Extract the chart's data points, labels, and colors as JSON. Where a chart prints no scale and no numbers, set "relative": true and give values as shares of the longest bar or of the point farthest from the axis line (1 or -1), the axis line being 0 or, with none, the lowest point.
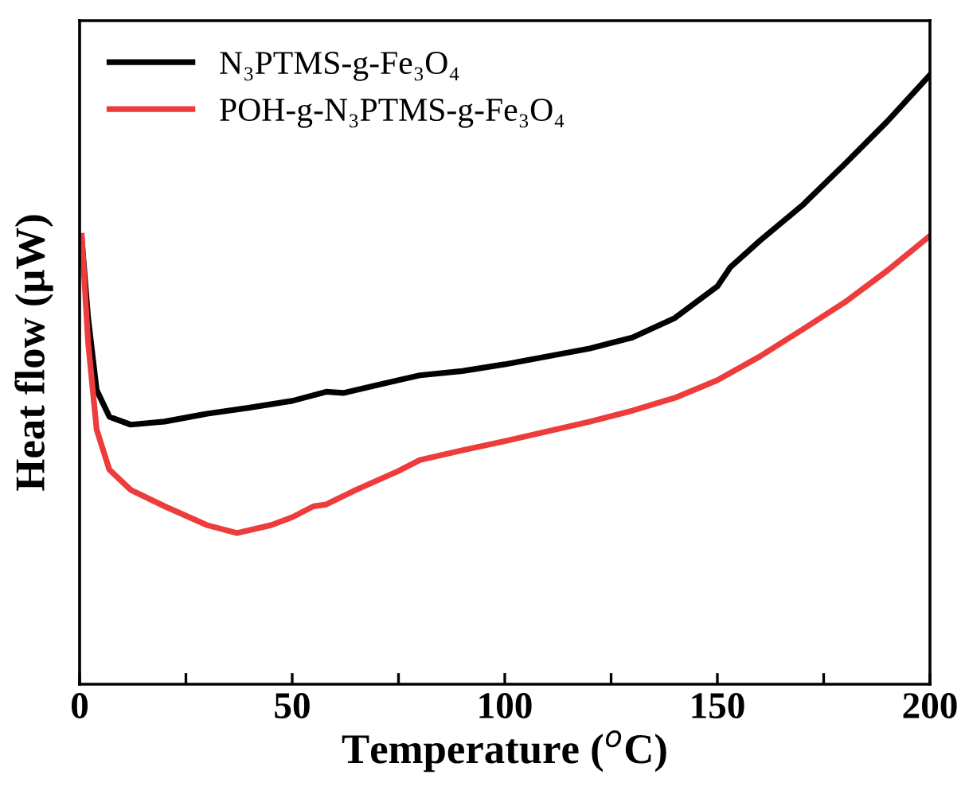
{
  "chart_data": {
    "type": "line",
    "xlabel": "Temperature ($^{o}$C)",
    "ylabel": "Heat flow (μW)",
    "relative": true,
    "xlim": [
      0,
      200
    ],
    "xticks": [
      0,
      {
        "value": 25,
        "label": null
      },
      50,
      {
        "value": 75,
        "label": null
      },
      100,
      {
        "value": 125,
        "label": null
      },
      150,
      {
        "value": 175,
        "label": null
      },
      200
    ],
    "tick_labels": "x",
    "grid": false,
    "legend": "top left",
    "line_style": "solid",
    "series": [
      {
        "name": "N₃PTMS-g-Fe₃O₄",
        "color": "#000000",
        "x": [
          0.5,
          2,
          4,
          7,
          12,
          20,
          30,
          40,
          50,
          58,
          62,
          70,
          80,
          90,
          100,
          110,
          120,
          130,
          140,
          150,
          153,
          160,
          170,
          180,
          190,
          200
        ],
        "values": [
          0.731,
          0.601,
          0.483,
          0.439,
          0.426,
          0.431,
          0.444,
          0.454,
          0.465,
          0.48,
          0.478,
          0.491,
          0.507,
          0.514,
          0.525,
          0.538,
          0.551,
          0.569,
          0.601,
          0.653,
          0.684,
          0.728,
          0.786,
          0.854,
          0.924,
          1.0
        ]
      },
      {
        "name": "POH-g-N₃PTMS-g-Fe₃O₄",
        "color": "#ee3b3b",
        "x": [
          0.5,
          2,
          4,
          7,
          12,
          20,
          30,
          37,
          45,
          50,
          55,
          58,
          65,
          75,
          80,
          90,
          100,
          110,
          120,
          130,
          140,
          150,
          160,
          170,
          180,
          190,
          200
        ],
        "values": [
          0.736,
          0.561,
          0.418,
          0.352,
          0.319,
          0.292,
          0.261,
          0.248,
          0.261,
          0.274,
          0.292,
          0.295,
          0.319,
          0.35,
          0.368,
          0.384,
          0.399,
          0.415,
          0.431,
          0.449,
          0.47,
          0.499,
          0.538,
          0.582,
          0.627,
          0.679,
          0.736
        ]
      }
    ]
  }
}
